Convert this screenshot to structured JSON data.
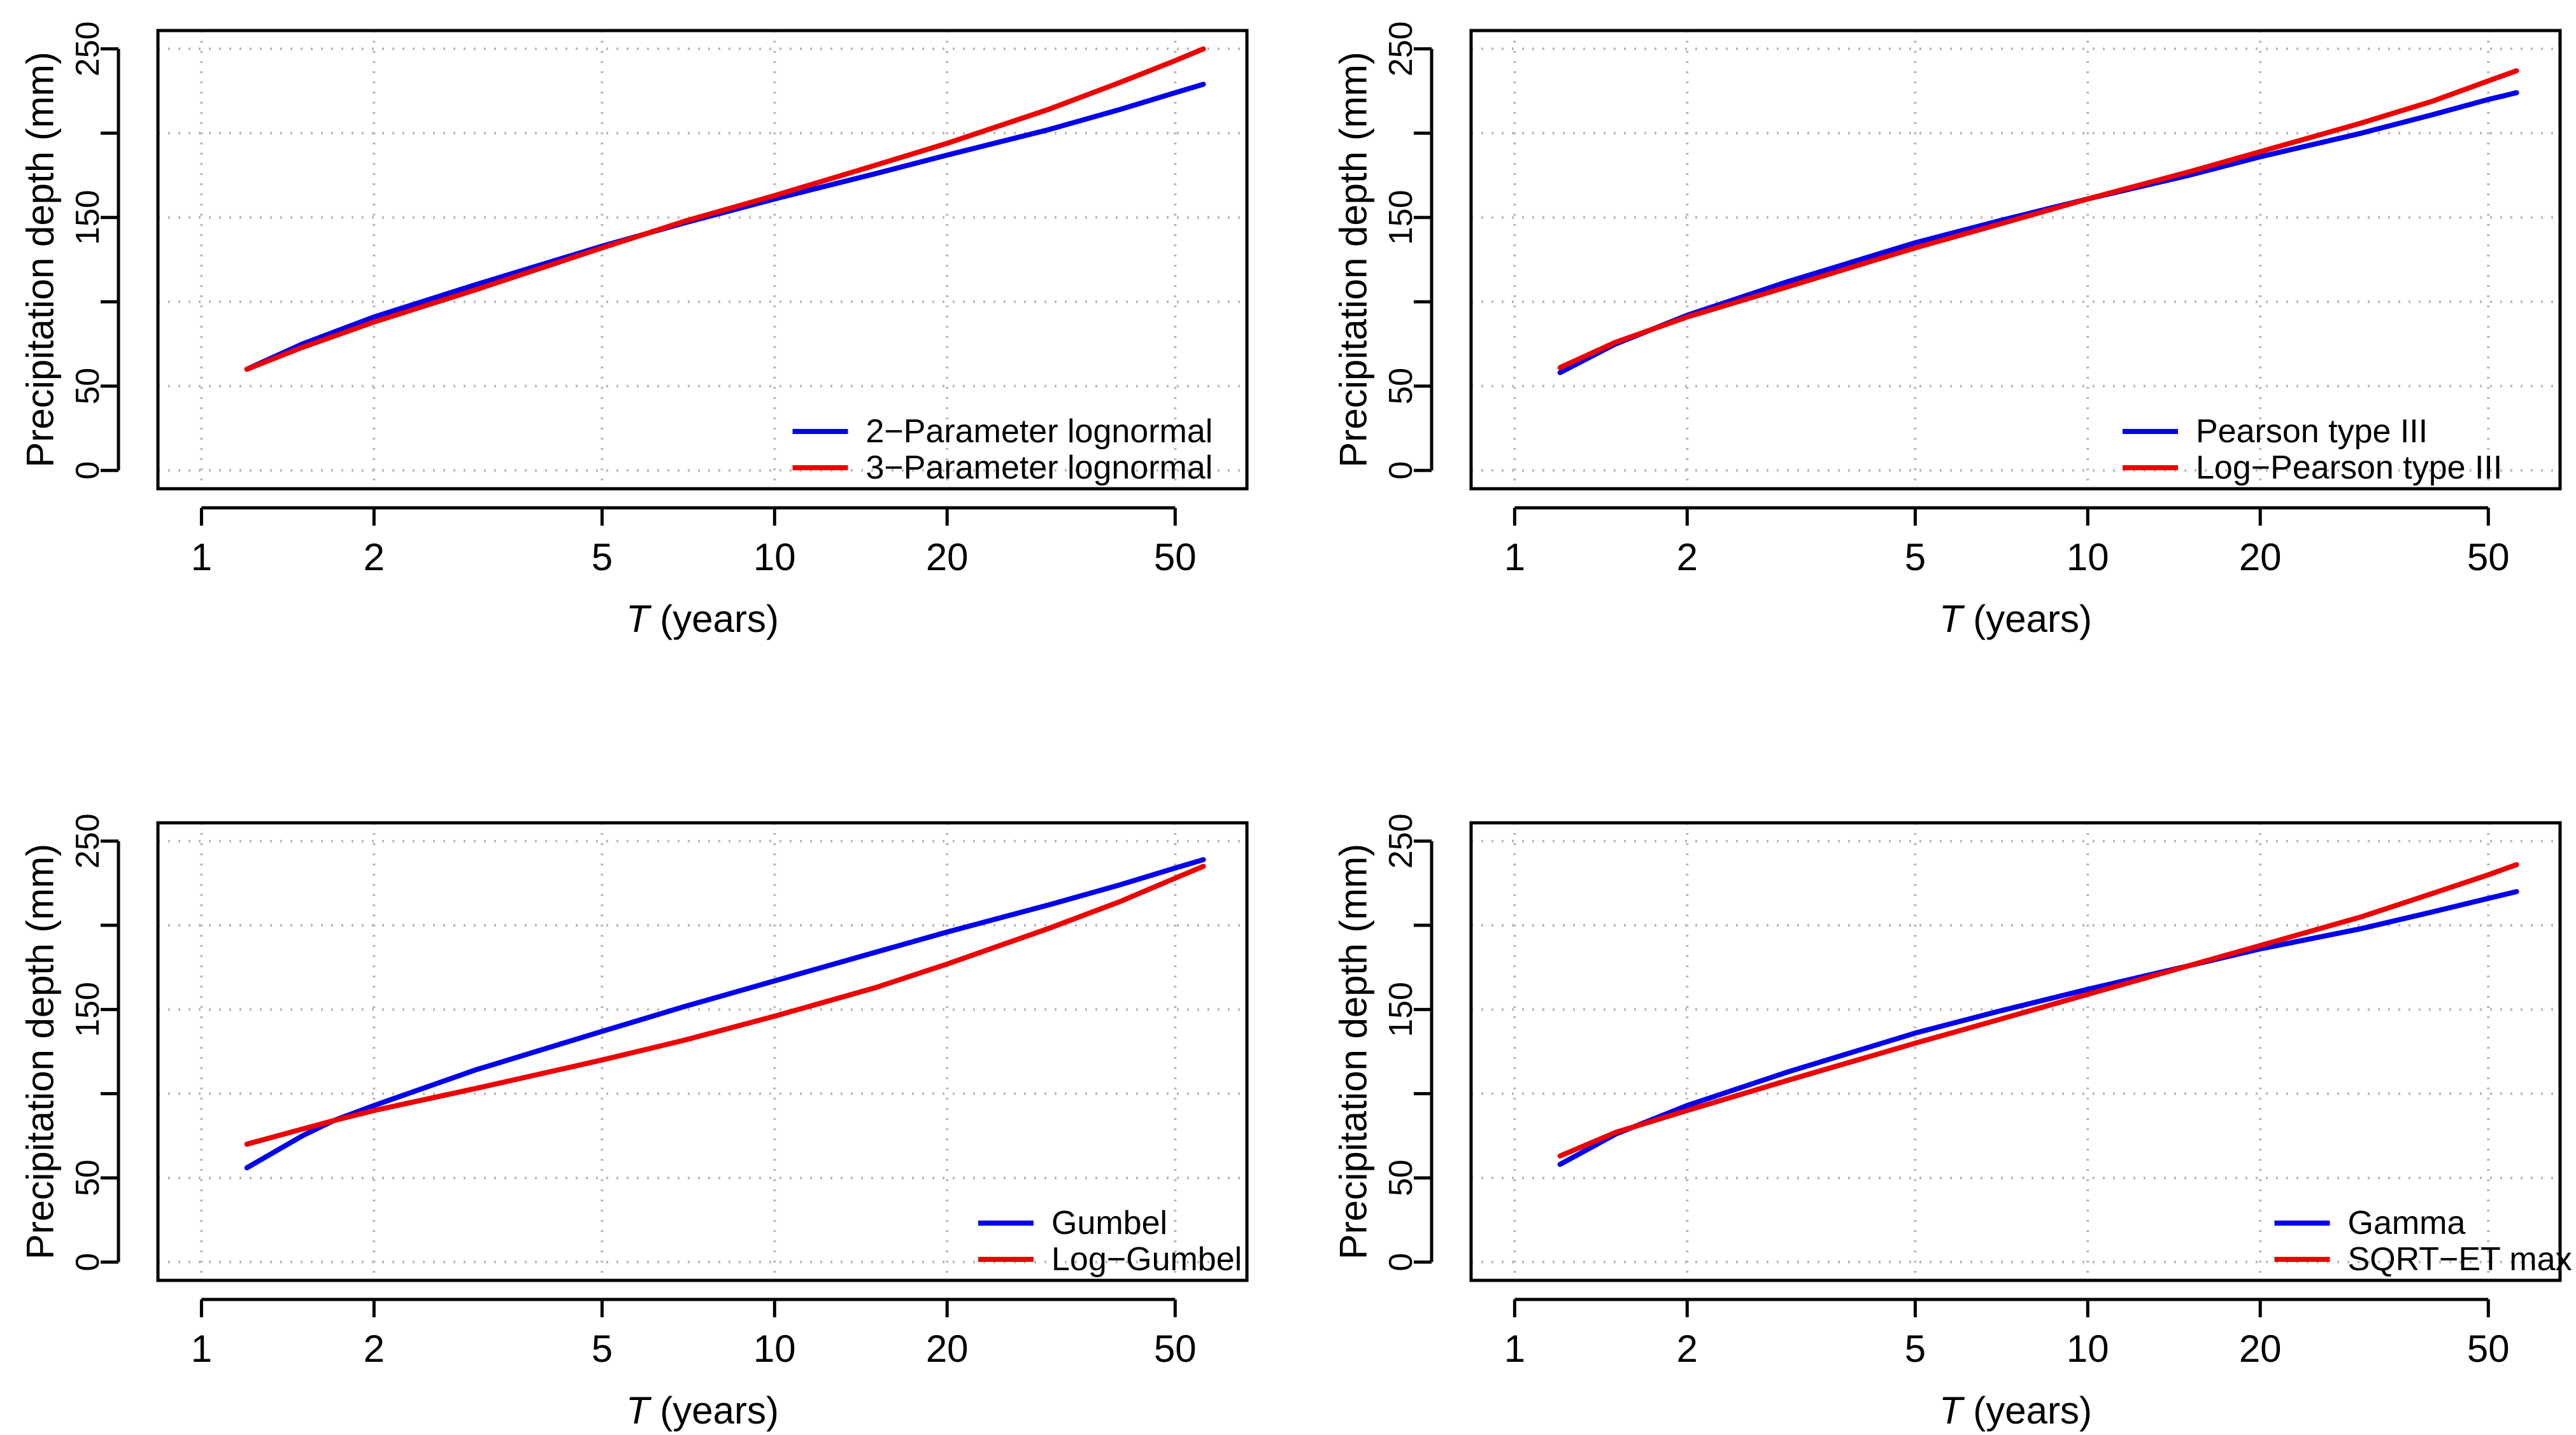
{
  "chart_data": [
    {
      "type": "line",
      "xlabel": "T (years)",
      "xlabel_italic": "T",
      "xlabel_rest": " (years)",
      "ylabel": "Precipitation depth (mm)",
      "xscale": "log",
      "xlim": [
        1,
        56
      ],
      "ylim": [
        0,
        250
      ],
      "xticks": [
        1,
        2,
        5,
        10,
        20,
        50
      ],
      "yticks": [
        0,
        50,
        150,
        250
      ],
      "ygrid": [
        0,
        50,
        100,
        150,
        200,
        250
      ],
      "grid": true,
      "legend_position": "bottom-right",
      "series": [
        {
          "name": "2−Parameter lognormal",
          "color": "#0000ee",
          "x": [
            1.2,
            1.5,
            2,
            3,
            5,
            7,
            10,
            15,
            20,
            30,
            40,
            50,
            56
          ],
          "y": [
            60,
            75,
            91,
            110,
            133,
            147,
            161,
            176,
            187,
            202,
            214,
            224,
            229
          ]
        },
        {
          "name": "3−Parameter lognormal",
          "color": "#ee0000",
          "x": [
            1.2,
            1.5,
            2,
            3,
            5,
            7,
            10,
            15,
            20,
            30,
            40,
            50,
            56
          ],
          "y": [
            60,
            73,
            88,
            107,
            132,
            148,
            163,
            181,
            194,
            214,
            230,
            243,
            250
          ]
        }
      ]
    },
    {
      "type": "line",
      "xlabel": "T (years)",
      "xlabel_italic": "T",
      "xlabel_rest": " (years)",
      "ylabel": "Precipitation depth (mm)",
      "xscale": "log",
      "xlim": [
        1,
        56
      ],
      "ylim": [
        0,
        250
      ],
      "xticks": [
        1,
        2,
        5,
        10,
        20,
        50
      ],
      "yticks": [
        0,
        50,
        150,
        250
      ],
      "ygrid": [
        0,
        50,
        100,
        150,
        200,
        250
      ],
      "grid": true,
      "legend_position": "bottom-right",
      "series": [
        {
          "name": "Pearson type III",
          "color": "#0000ee",
          "x": [
            1.2,
            1.5,
            2,
            3,
            5,
            7,
            10,
            15,
            20,
            30,
            40,
            50,
            56
          ],
          "y": [
            58,
            75,
            92,
            112,
            135,
            148,
            161,
            175,
            186,
            200,
            211,
            220,
            224
          ]
        },
        {
          "name": "Log−Pearson type III",
          "color": "#ee0000",
          "x": [
            1.2,
            1.5,
            2,
            3,
            5,
            7,
            10,
            15,
            20,
            30,
            40,
            50,
            56
          ],
          "y": [
            61,
            76,
            91,
            109,
            132,
            146,
            161,
            177,
            189,
            206,
            219,
            231,
            237
          ]
        }
      ]
    },
    {
      "type": "line",
      "xlabel": "T (years)",
      "xlabel_italic": "T",
      "xlabel_rest": " (years)",
      "ylabel": "Precipitation depth (mm)",
      "xscale": "log",
      "xlim": [
        1,
        56
      ],
      "ylim": [
        0,
        250
      ],
      "xticks": [
        1,
        2,
        5,
        10,
        20,
        50
      ],
      "yticks": [
        0,
        50,
        150,
        250
      ],
      "ygrid": [
        0,
        50,
        100,
        150,
        200,
        250
      ],
      "grid": true,
      "legend_position": "bottom-right",
      "series": [
        {
          "name": "Gumbel",
          "color": "#0000ee",
          "x": [
            1.2,
            1.5,
            1.7,
            2,
            3,
            5,
            7,
            10,
            15,
            20,
            30,
            40,
            50,
            56
          ],
          "y": [
            56,
            75,
            84,
            93,
            114,
            137,
            152,
            167,
            184,
            196,
            212,
            224,
            234,
            239
          ]
        },
        {
          "name": "Log−Gumbel",
          "color": "#ee0000",
          "x": [
            1.2,
            1.5,
            1.7,
            2,
            3,
            5,
            7,
            10,
            15,
            20,
            30,
            40,
            50,
            56
          ],
          "y": [
            70,
            79,
            84,
            90,
            103,
            120,
            132,
            146,
            163,
            177,
            198,
            214,
            228,
            235
          ]
        }
      ]
    },
    {
      "type": "line",
      "xlabel": "T (years)",
      "xlabel_italic": "T",
      "xlabel_rest": " (years)",
      "ylabel": "Precipitation depth (mm)",
      "xscale": "log",
      "xlim": [
        1,
        56
      ],
      "ylim": [
        0,
        250
      ],
      "xticks": [
        1,
        2,
        5,
        10,
        20,
        50
      ],
      "yticks": [
        0,
        50,
        150,
        250
      ],
      "ygrid": [
        0,
        50,
        100,
        150,
        200,
        250
      ],
      "grid": true,
      "legend_position": "bottom-right",
      "series": [
        {
          "name": "Gamma",
          "color": "#0000ee",
          "x": [
            1.2,
            1.5,
            2,
            3,
            5,
            7,
            10,
            15,
            20,
            30,
            40,
            50,
            56
          ],
          "y": [
            58,
            76,
            93,
            113,
            136,
            149,
            162,
            176,
            186,
            198,
            208,
            216,
            220
          ]
        },
        {
          "name": "SQRT−ET max",
          "color": "#ee0000",
          "x": [
            1.2,
            1.5,
            2,
            3,
            5,
            7,
            10,
            15,
            20,
            30,
            40,
            50,
            56
          ],
          "y": [
            63,
            77,
            90,
            108,
            130,
            144,
            159,
            176,
            188,
            205,
            219,
            230,
            236
          ]
        }
      ]
    }
  ]
}
